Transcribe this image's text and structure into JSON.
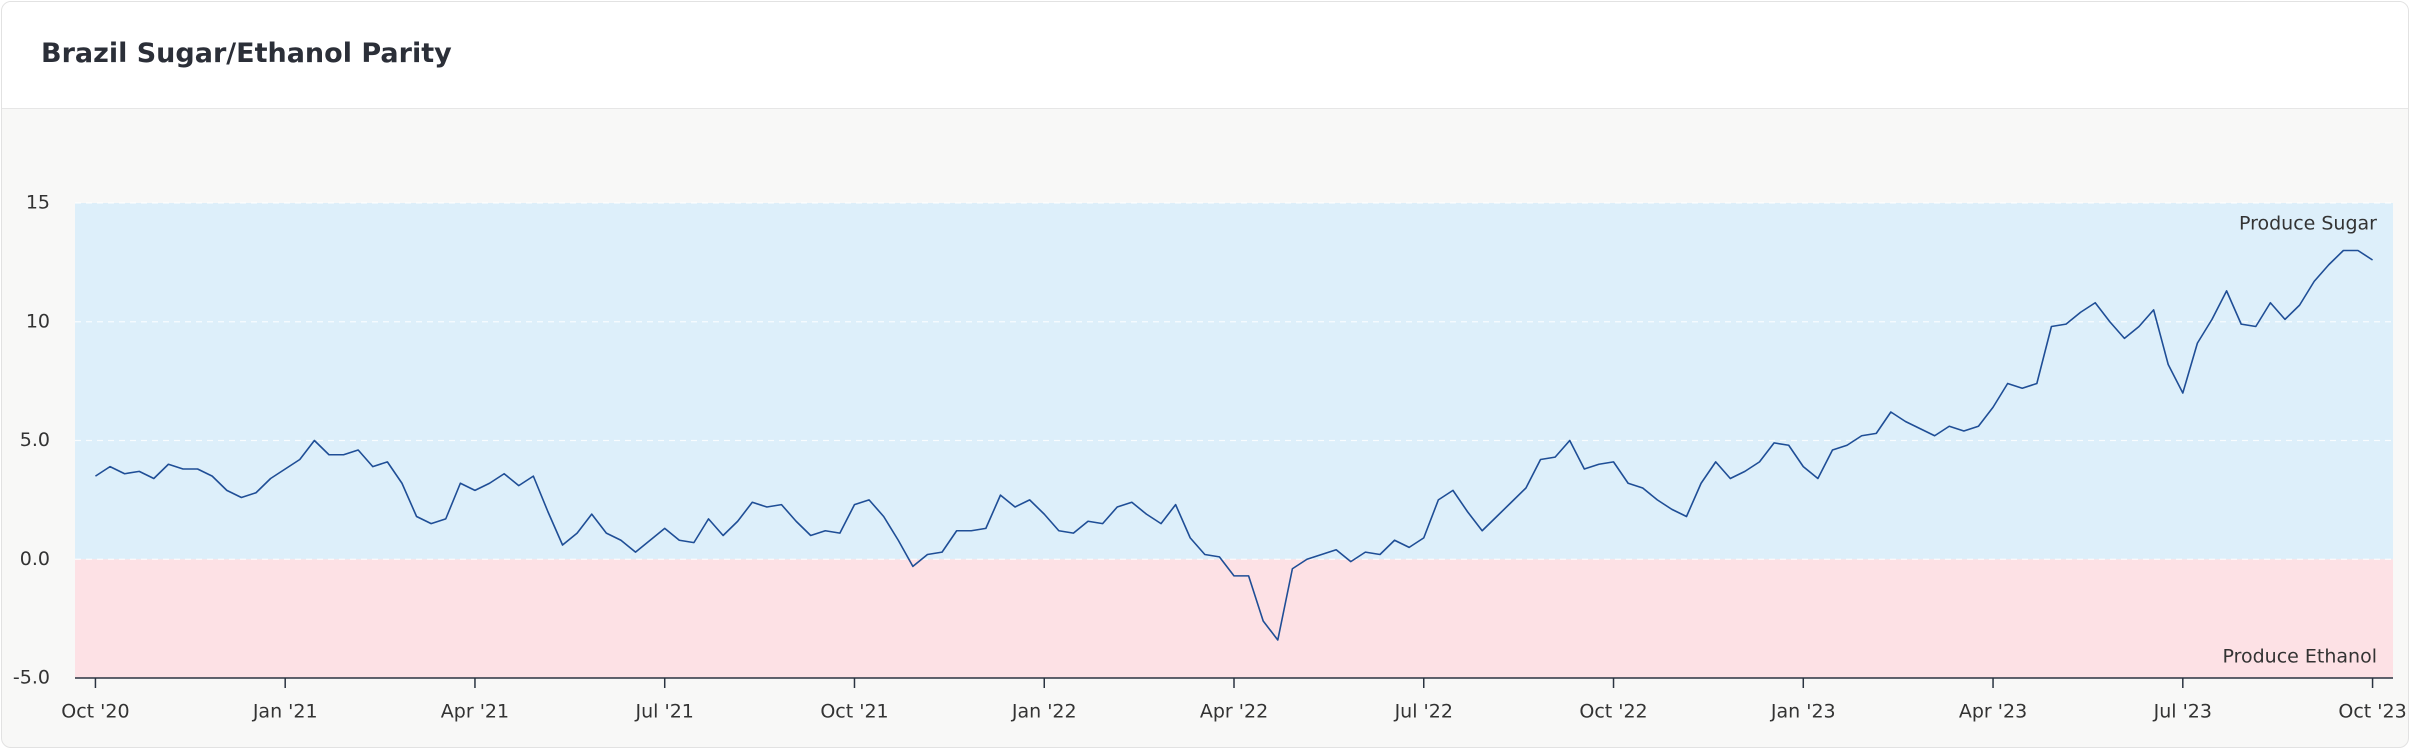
{
  "chart_data": {
    "type": "line",
    "title": "Brazil Sugar/Ethanol Parity",
    "series": [
      {
        "name": "Parity",
        "color": "#1f4e96",
        "values": [
          3.5,
          3.9,
          3.6,
          3.7,
          3.4,
          4.0,
          3.8,
          3.8,
          3.5,
          2.9,
          2.6,
          2.8,
          3.4,
          3.8,
          4.2,
          5.0,
          4.4,
          4.4,
          4.6,
          3.9,
          4.1,
          3.2,
          1.8,
          1.5,
          1.7,
          3.2,
          2.9,
          3.2,
          3.6,
          3.1,
          3.5,
          2.0,
          0.6,
          1.1,
          1.9,
          1.1,
          0.8,
          0.3,
          0.8,
          1.3,
          0.8,
          0.7,
          1.7,
          1.0,
          1.6,
          2.4,
          2.2,
          2.3,
          1.6,
          1.0,
          1.2,
          1.1,
          2.3,
          2.5,
          1.8,
          0.8,
          -0.3,
          0.2,
          0.3,
          1.2,
          1.2,
          1.3,
          2.7,
          2.2,
          2.5,
          1.9,
          1.2,
          1.1,
          1.6,
          1.5,
          2.2,
          2.4,
          1.9,
          1.5,
          2.3,
          0.9,
          0.2,
          0.1,
          -0.7,
          -0.7,
          -2.6,
          -3.4,
          -0.4,
          0.0,
          0.2,
          0.4,
          -0.1,
          0.3,
          0.2,
          0.8,
          0.5,
          0.9,
          2.5,
          2.9,
          2.0,
          1.2,
          1.8,
          2.4,
          3.0,
          4.2,
          4.3,
          5.0,
          3.8,
          4.0,
          4.1,
          3.2,
          3.0,
          2.5,
          2.1,
          1.8,
          3.2,
          4.1,
          3.4,
          3.7,
          4.1,
          4.9,
          4.8,
          3.9,
          3.4,
          4.6,
          4.8,
          5.2,
          5.3,
          6.2,
          5.8,
          5.5,
          5.2,
          5.6,
          5.4,
          5.6,
          6.4,
          7.4,
          7.2,
          7.4,
          9.8,
          9.9,
          10.4,
          10.8,
          10.0,
          9.3,
          9.8,
          10.5,
          8.2,
          7.0,
          9.1,
          10.1,
          11.3,
          9.9,
          9.8,
          10.8,
          10.1,
          10.7,
          11.7,
          12.4,
          13.0,
          13.0,
          12.6
        ]
      }
    ],
    "xlim": [
      -1.4,
      157.4
    ],
    "xticks": [
      {
        "value": 0,
        "label": "Oct '20"
      },
      {
        "value": 13,
        "label": "Jan '21"
      },
      {
        "value": 26,
        "label": "Apr '21"
      },
      {
        "value": 39,
        "label": "Jul '21"
      },
      {
        "value": 52,
        "label": "Oct '21"
      },
      {
        "value": 65,
        "label": "Jan '22"
      },
      {
        "value": 78,
        "label": "Apr '22"
      },
      {
        "value": 91,
        "label": "Jul '22"
      },
      {
        "value": 104,
        "label": "Oct '22"
      },
      {
        "value": 117,
        "label": "Jan '23"
      },
      {
        "value": 130,
        "label": "Apr '23"
      },
      {
        "value": 143,
        "label": "Jul '23"
      },
      {
        "value": 156,
        "label": "Oct '23"
      }
    ],
    "ylim": [
      -5,
      15
    ],
    "yticks": [
      {
        "value": -5,
        "label": "-5.0"
      },
      {
        "value": 0,
        "label": "0.0"
      },
      {
        "value": 5,
        "label": "5.0"
      },
      10,
      15
    ],
    "grid": true,
    "regions": [
      {
        "label": "Produce Sugar",
        "from": 0,
        "to": 15,
        "color": "#ddeffa"
      },
      {
        "label": "Produce Ethanol",
        "from": -5,
        "to": 0,
        "color": "#fde1e5"
      }
    ]
  }
}
